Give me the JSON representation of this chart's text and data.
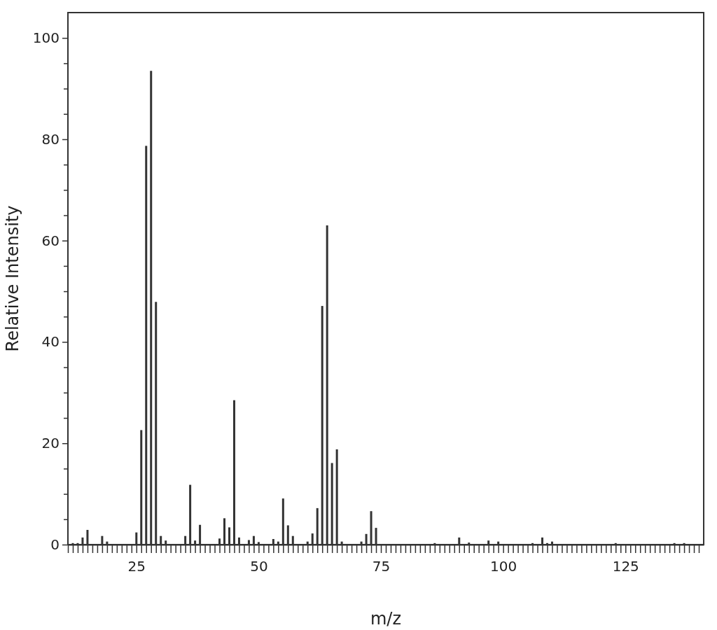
{
  "chart_data": {
    "type": "bar",
    "xlabel": "m/z",
    "ylabel": "Relative Intensity",
    "color": "#333333",
    "x": [
      12,
      13,
      14,
      15,
      18,
      19,
      25,
      26,
      27,
      28,
      29,
      30,
      31,
      35,
      36,
      37,
      38,
      42,
      43,
      44,
      45,
      46,
      48,
      49,
      50,
      53,
      54,
      55,
      56,
      57,
      60,
      61,
      62,
      63,
      64,
      65,
      66,
      67,
      71,
      72,
      73,
      74,
      86,
      91,
      93,
      97,
      99,
      106,
      108,
      109,
      110,
      123,
      135,
      137
    ],
    "values": [
      0.3,
      0.3,
      1.4,
      2.9,
      1.7,
      0.6,
      2.4,
      22.6,
      78.7,
      93.5,
      47.9,
      1.7,
      0.8,
      1.7,
      11.8,
      0.8,
      3.9,
      1.2,
      5.2,
      3.4,
      28.5,
      1.4,
      0.9,
      1.7,
      0.5,
      1.1,
      0.6,
      9.1,
      3.8,
      1.7,
      0.6,
      2.2,
      7.2,
      47.1,
      63.0,
      16.1,
      18.8,
      0.6,
      0.6,
      2.1,
      6.6,
      3.3,
      0.3,
      1.4,
      0.4,
      0.8,
      0.6,
      0.3,
      1.4,
      0.3,
      0.6,
      0.3,
      0.3,
      0.3
    ],
    "xlim": [
      11,
      141
    ],
    "ylim": [
      0,
      105
    ],
    "yticks": [
      0,
      {
        "value": 5,
        "label": null
      },
      20,
      {
        "value": 10,
        "label": null
      },
      {
        "value": 15,
        "label": null
      },
      {
        "value": 25,
        "label": null
      },
      {
        "value": 30,
        "label": null
      },
      {
        "value": 35,
        "label": null
      },
      40,
      {
        "value": 45,
        "label": null
      },
      {
        "value": 50,
        "label": null
      },
      {
        "value": 55,
        "label": null
      },
      60,
      {
        "value": 65,
        "label": null
      },
      {
        "value": 70,
        "label": null
      },
      {
        "value": 75,
        "label": null
      },
      80,
      {
        "value": 85,
        "label": null
      },
      {
        "value": 90,
        "label": null
      },
      {
        "value": 95,
        "label": null
      },
      100
    ],
    "xticks": [
      {
        "value": 11,
        "label": null
      },
      {
        "value": 12,
        "label": null
      },
      {
        "value": 13,
        "label": null
      },
      {
        "value": 14,
        "label": null
      },
      {
        "value": 15,
        "label": null
      },
      {
        "value": 16,
        "label": null
      },
      {
        "value": 17,
        "label": null
      },
      {
        "value": 18,
        "label": null
      },
      {
        "value": 19,
        "label": null
      },
      {
        "value": 20,
        "label": null
      },
      {
        "value": 21,
        "label": null
      },
      {
        "value": 22,
        "label": null
      },
      {
        "value": 23,
        "label": null
      },
      {
        "value": 24,
        "label": null
      },
      25,
      {
        "value": 26,
        "label": null
      },
      {
        "value": 27,
        "label": null
      },
      {
        "value": 28,
        "label": null
      },
      {
        "value": 29,
        "label": null
      },
      {
        "value": 30,
        "label": null
      },
      {
        "value": 31,
        "label": null
      },
      {
        "value": 32,
        "label": null
      },
      {
        "value": 33,
        "label": null
      },
      {
        "value": 34,
        "label": null
      },
      {
        "value": 35,
        "label": null
      },
      {
        "value": 36,
        "label": null
      },
      {
        "value": 37,
        "label": null
      },
      {
        "value": 38,
        "label": null
      },
      {
        "value": 39,
        "label": null
      },
      {
        "value": 40,
        "label": null
      },
      {
        "value": 41,
        "label": null
      },
      {
        "value": 42,
        "label": null
      },
      {
        "value": 43,
        "label": null
      },
      {
        "value": 44,
        "label": null
      },
      {
        "value": 45,
        "label": null
      },
      {
        "value": 46,
        "label": null
      },
      {
        "value": 47,
        "label": null
      },
      {
        "value": 48,
        "label": null
      },
      {
        "value": 49,
        "label": null
      },
      50,
      {
        "value": 51,
        "label": null
      },
      {
        "value": 52,
        "label": null
      },
      {
        "value": 53,
        "label": null
      },
      {
        "value": 54,
        "label": null
      },
      {
        "value": 55,
        "label": null
      },
      {
        "value": 56,
        "label": null
      },
      {
        "value": 57,
        "label": null
      },
      {
        "value": 58,
        "label": null
      },
      {
        "value": 59,
        "label": null
      },
      {
        "value": 60,
        "label": null
      },
      {
        "value": 61,
        "label": null
      },
      {
        "value": 62,
        "label": null
      },
      {
        "value": 63,
        "label": null
      },
      {
        "value": 64,
        "label": null
      },
      {
        "value": 65,
        "label": null
      },
      {
        "value": 66,
        "label": null
      },
      {
        "value": 67,
        "label": null
      },
      {
        "value": 68,
        "label": null
      },
      {
        "value": 69,
        "label": null
      },
      {
        "value": 70,
        "label": null
      },
      {
        "value": 71,
        "label": null
      },
      {
        "value": 72,
        "label": null
      },
      {
        "value": 73,
        "label": null
      },
      {
        "value": 74,
        "label": null
      },
      75,
      {
        "value": 76,
        "label": null
      },
      {
        "value": 77,
        "label": null
      },
      {
        "value": 78,
        "label": null
      },
      {
        "value": 79,
        "label": null
      },
      {
        "value": 80,
        "label": null
      },
      {
        "value": 81,
        "label": null
      },
      {
        "value": 82,
        "label": null
      },
      {
        "value": 83,
        "label": null
      },
      {
        "value": 84,
        "label": null
      },
      {
        "value": 85,
        "label": null
      },
      {
        "value": 86,
        "label": null
      },
      {
        "value": 87,
        "label": null
      },
      {
        "value": 88,
        "label": null
      },
      {
        "value": 89,
        "label": null
      },
      {
        "value": 90,
        "label": null
      },
      {
        "value": 91,
        "label": null
      },
      {
        "value": 92,
        "label": null
      },
      {
        "value": 93,
        "label": null
      },
      {
        "value": 94,
        "label": null
      },
      {
        "value": 95,
        "label": null
      },
      {
        "value": 96,
        "label": null
      },
      {
        "value": 97,
        "label": null
      },
      {
        "value": 98,
        "label": null
      },
      {
        "value": 99,
        "label": null
      },
      100,
      {
        "value": 101,
        "label": null
      },
      {
        "value": 102,
        "label": null
      },
      {
        "value": 103,
        "label": null
      },
      {
        "value": 104,
        "label": null
      },
      {
        "value": 105,
        "label": null
      },
      {
        "value": 106,
        "label": null
      },
      {
        "value": 107,
        "label": null
      },
      {
        "value": 108,
        "label": null
      },
      {
        "value": 109,
        "label": null
      },
      {
        "value": 110,
        "label": null
      },
      {
        "value": 111,
        "label": null
      },
      {
        "value": 112,
        "label": null
      },
      {
        "value": 113,
        "label": null
      },
      {
        "value": 114,
        "label": null
      },
      {
        "value": 115,
        "label": null
      },
      {
        "value": 116,
        "label": null
      },
      {
        "value": 117,
        "label": null
      },
      {
        "value": 118,
        "label": null
      },
      {
        "value": 119,
        "label": null
      },
      {
        "value": 120,
        "label": null
      },
      {
        "value": 121,
        "label": null
      },
      {
        "value": 122,
        "label": null
      },
      {
        "value": 123,
        "label": null
      },
      {
        "value": 124,
        "label": null
      },
      125,
      {
        "value": 126,
        "label": null
      },
      {
        "value": 127,
        "label": null
      },
      {
        "value": 128,
        "label": null
      },
      {
        "value": 129,
        "label": null
      },
      {
        "value": 130,
        "label": null
      },
      {
        "value": 131,
        "label": null
      },
      {
        "value": 132,
        "label": null
      },
      {
        "value": 133,
        "label": null
      },
      {
        "value": 134,
        "label": null
      },
      {
        "value": 135,
        "label": null
      },
      {
        "value": 136,
        "label": null
      },
      {
        "value": 137,
        "label": null
      },
      {
        "value": 138,
        "label": null
      },
      {
        "value": 139,
        "label": null
      },
      {
        "value": 140,
        "label": null
      }
    ]
  }
}
